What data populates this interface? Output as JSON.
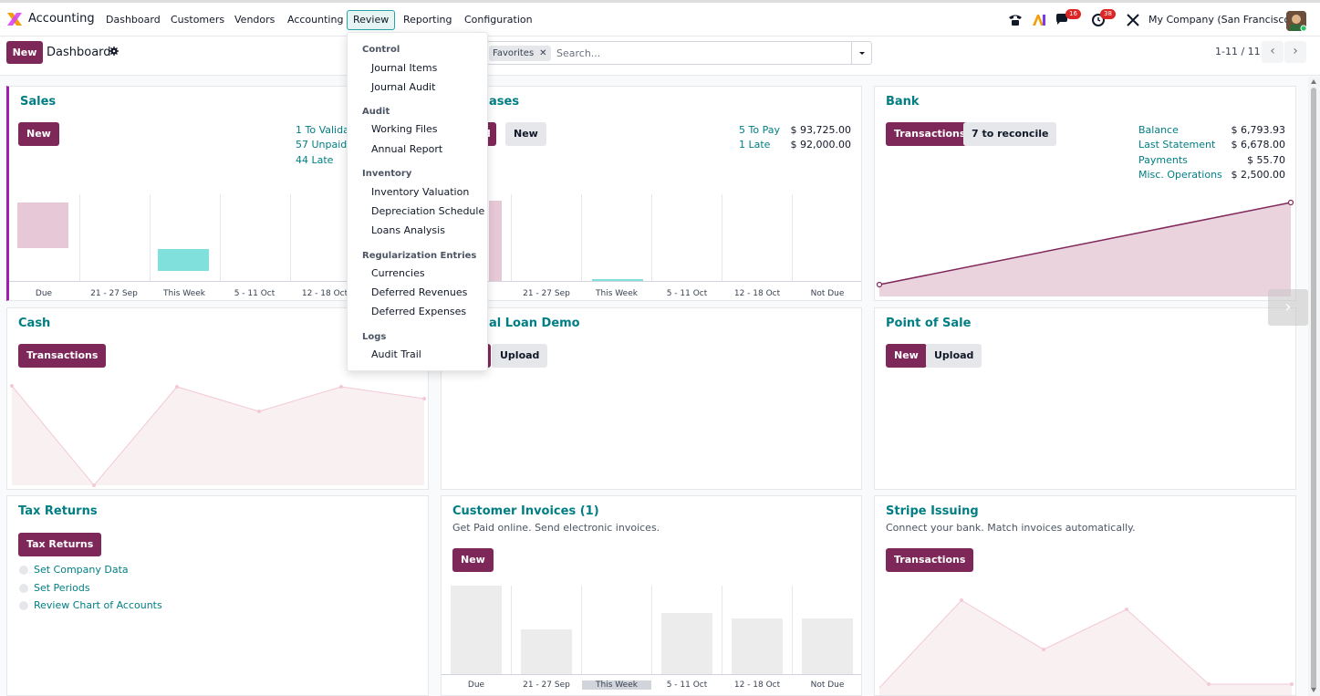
{
  "app": {
    "name": "Accounting"
  },
  "menu": [
    "Dashboard",
    "Customers",
    "Vendors",
    "Accounting",
    "Review",
    "Reporting",
    "Configuration"
  ],
  "systray": {
    "messages_badge": "16",
    "activity_badge": "38",
    "company": "My Company (San Francisco)"
  },
  "control": {
    "new_label": "New",
    "breadcrumb": "Dashboard",
    "facet": "Favorites",
    "search_placeholder": "Search...",
    "pager": "1-11 / 11"
  },
  "review_menu": {
    "sections": [
      {
        "header": "Control",
        "items": [
          "Journal Items",
          "Journal Audit"
        ]
      },
      {
        "header": "Audit",
        "items": [
          "Working Files",
          "Annual Report"
        ]
      },
      {
        "header": "Inventory",
        "items": [
          "Inventory Valuation",
          "Depreciation Schedule",
          "Loans Analysis"
        ]
      },
      {
        "header": "Regularization Entries",
        "items": [
          "Currencies",
          "Deferred Revenues",
          "Deferred Expenses"
        ]
      },
      {
        "header": "Logs",
        "items": [
          "Audit Trail"
        ]
      }
    ]
  },
  "cards": {
    "sales": {
      "title": "Sales",
      "new_label": "New",
      "stats": [
        "1 To Validat",
        "57 Unpaid",
        "44 Late"
      ],
      "chart_labels": [
        "Due",
        "21 - 27 Sep",
        "This Week",
        "5 - 11 Oct",
        "12 - 18 Oct"
      ]
    },
    "purchases": {
      "title_fragment": "ases",
      "upload_fragment": "d",
      "new_label": "New",
      "stats": [
        {
          "label": "5 To Pay",
          "value": "$ 93,725.00"
        },
        {
          "label": "1 Late",
          "value": "$ 92,000.00"
        }
      ],
      "chart_labels": [
        "21 - 27 Sep",
        "This Week",
        "5 - 11 Oct",
        "12 - 18 Oct",
        "Not Due"
      ]
    },
    "bank": {
      "title": "Bank",
      "transactions_label": "Transactions",
      "reconcile_label": "7 to reconcile",
      "stats": [
        {
          "label": "Balance",
          "value": "$ 6,793.93"
        },
        {
          "label": "Last Statement",
          "value": "$ 6,678.00"
        },
        {
          "label": "Payments",
          "value": "$ 55.70"
        },
        {
          "label": "Misc. Operations",
          "value": "$ 2,500.00"
        }
      ]
    },
    "cash": {
      "title": "Cash",
      "transactions_label": "Transactions"
    },
    "loan": {
      "title_fragment": "al Loan Demo",
      "upload_label": "Upload"
    },
    "pos": {
      "title": "Point of Sale",
      "new_label": "New",
      "upload_label": "Upload"
    },
    "tax": {
      "title": "Tax Returns",
      "button_label": "Tax Returns",
      "steps": [
        "Set Company Data",
        "Set Periods",
        "Review Chart of Accounts"
      ]
    },
    "invoices": {
      "title": "Customer Invoices (1)",
      "subtitle": "Get Paid online. Send electronic invoices.",
      "new_label": "New",
      "chart_labels": [
        "Due",
        "21 - 27 Sep",
        "This Week",
        "5 - 11 Oct",
        "12 - 18 Oct",
        "Not Due"
      ]
    },
    "stripe": {
      "title": "Stripe Issuing",
      "subtitle": "Connect your bank. Match invoices automatically.",
      "transactions_label": "Transactions"
    }
  },
  "colors": {
    "brand": "#7e2859",
    "link": "#017e84",
    "teal_bar": "#7fe0dc",
    "pink_bar": "#e6c8d6"
  }
}
